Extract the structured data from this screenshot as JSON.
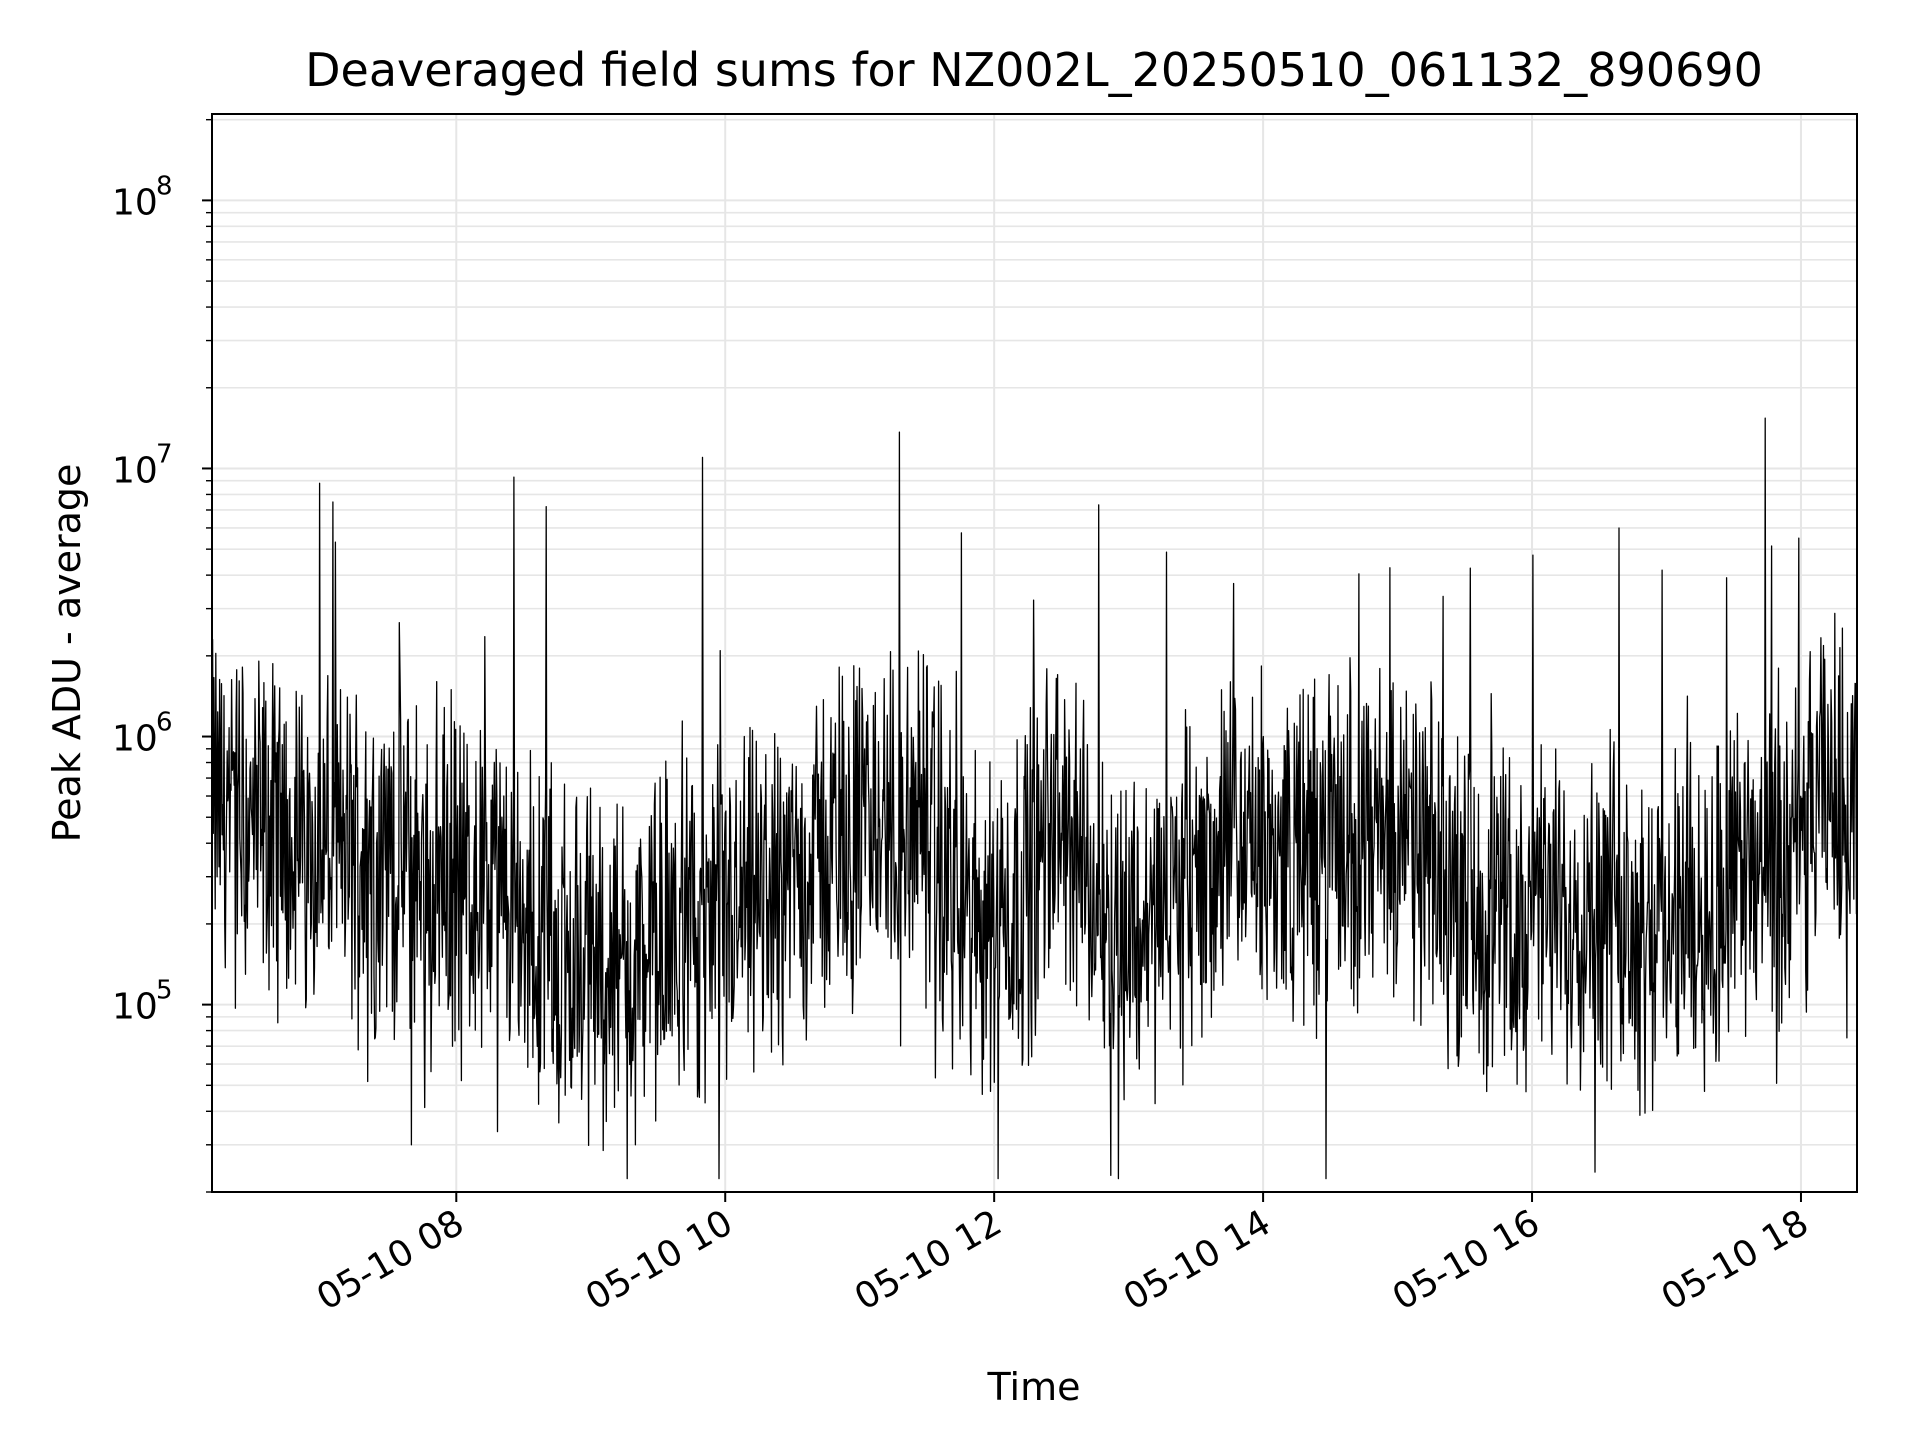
{
  "chart_data": {
    "type": "line",
    "title": "Deaveraged field sums for NZ002L_20250510_061132_890690",
    "xlabel": "Time",
    "ylabel": "Peak ADU - average",
    "y_scale": "log",
    "ylim": [
      20000,
      210000000
    ],
    "xlim": [
      "05-10 06:11",
      "05-10 18:25"
    ],
    "x_ticks": [
      "05-10 08",
      "05-10 10",
      "05-10 12",
      "05-10 14",
      "05-10 16",
      "05-10 18"
    ],
    "x_tick_hours": [
      8,
      10,
      12,
      14,
      16,
      18
    ],
    "y_ticks": [
      {
        "value": 100000,
        "base": "10",
        "exp": "5"
      },
      {
        "value": 1000000,
        "base": "10",
        "exp": "6"
      },
      {
        "value": 10000000,
        "base": "10",
        "exp": "7"
      },
      {
        "value": 100000000,
        "base": "10",
        "exp": "8"
      }
    ],
    "grid": true,
    "line_color": "#000000",
    "grid_color": "#e6e6e6",
    "series": [
      {
        "x": [
          "05-10 06:11",
          "05-10 06:30",
          "05-10 06:50",
          "05-10 07:10",
          "05-10 07:30",
          "05-10 07:50",
          "05-10 08:10",
          "05-10 08:30",
          "05-10 08:50",
          "05-10 09:10",
          "05-10 09:30",
          "05-10 09:50",
          "05-10 10:10",
          "05-10 10:30",
          "05-10 10:50",
          "05-10 11:10",
          "05-10 11:30",
          "05-10 11:50",
          "05-10 12:10",
          "05-10 12:30",
          "05-10 12:50",
          "05-10 13:10",
          "05-10 13:30",
          "05-10 13:50",
          "05-10 14:10",
          "05-10 14:30",
          "05-10 14:50",
          "05-10 15:10",
          "05-10 15:30",
          "05-10 15:50",
          "05-10 16:10",
          "05-10 16:30",
          "05-10 16:50",
          "05-10 17:10",
          "05-10 17:30",
          "05-10 17:50",
          "05-10 18:10",
          "05-10 18:25"
        ],
        "y": [
          600000,
          450000,
          400000,
          380000,
          350000,
          330000,
          280000,
          200000,
          150000,
          140000,
          160000,
          180000,
          220000,
          300000,
          420000,
          500000,
          400000,
          200000,
          250000,
          500000,
          200000,
          200000,
          300000,
          400000,
          350000,
          400000,
          450000,
          350000,
          250000,
          200000,
          220000,
          250000,
          200000,
          200000,
          300000,
          250000,
          600000,
          700000
        ]
      }
    ],
    "annotations": [
      {
        "x": "05-10 06:59",
        "y": 8800000
      },
      {
        "x": "05-10 07:05",
        "y": 7500000
      },
      {
        "x": "05-10 08:40",
        "y": 7200000
      },
      {
        "x": "05-10 09:50",
        "y": 11000000
      },
      {
        "x": "05-10 17:59",
        "y": 5500000
      },
      {
        "x": "05-10 07:40",
        "y": 30000
      },
      {
        "x": "05-10 09:20",
        "y": 30000
      }
    ]
  }
}
